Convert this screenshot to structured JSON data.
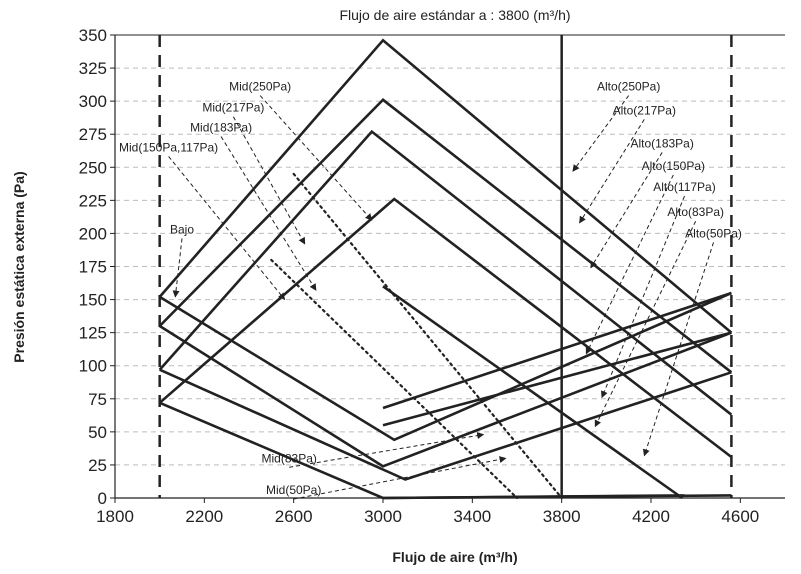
{
  "chart_data": {
    "type": "line",
    "title": "Flujo de aire estándar a : 3800 (m³/h)",
    "xlabel": "Flujo de aire (m³/h)",
    "ylabel": "Presión estática externa (Pa)",
    "xlim": [
      1800,
      4800
    ],
    "ylim": [
      0,
      350
    ],
    "xticks": [
      1800,
      2200,
      2600,
      3000,
      3400,
      3800,
      4200,
      4600
    ],
    "yticks": [
      0,
      25,
      50,
      75,
      100,
      125,
      150,
      175,
      200,
      225,
      250,
      275,
      300,
      325,
      350
    ],
    "grid": "horizontal-dashed",
    "standard_airflow": 3800,
    "limit_lines": [
      2000,
      4560
    ],
    "series": [
      {
        "points": [
          [
            2000,
            152
          ],
          [
            3000,
            346
          ],
          [
            4560,
            125
          ]
        ]
      },
      {
        "points": [
          [
            2000,
            130
          ],
          [
            3000,
            301
          ],
          [
            4560,
            95
          ]
        ]
      },
      {
        "points": [
          [
            2000,
            97
          ],
          [
            2950,
            277
          ],
          [
            4560,
            63
          ]
        ]
      },
      {
        "points": [
          [
            2000,
            72
          ],
          [
            3050,
            226
          ],
          [
            4560,
            31
          ]
        ]
      },
      {
        "points": [
          [
            2000,
            152
          ],
          [
            3050,
            44
          ],
          [
            4560,
            155
          ]
        ]
      },
      {
        "points": [
          [
            2000,
            130
          ],
          [
            3000,
            24
          ],
          [
            4560,
            125
          ]
        ]
      },
      {
        "points": [
          [
            2000,
            97
          ],
          [
            3100,
            14
          ],
          [
            4560,
            95
          ]
        ]
      },
      {
        "points": [
          [
            2000,
            72
          ],
          [
            3000,
            0
          ],
          [
            4560,
            2
          ]
        ]
      },
      {
        "points": [
          [
            3000,
            160
          ],
          [
            4340,
            0
          ]
        ]
      },
      {
        "points": [
          [
            3000,
            68
          ],
          [
            4560,
            155
          ]
        ]
      },
      {
        "points": [
          [
            3000,
            55
          ],
          [
            4560,
            125
          ]
        ]
      },
      {
        "points": [
          [
            3000,
            0
          ],
          [
            4350,
            2
          ]
        ]
      }
    ],
    "dotted_series": [
      {
        "points": [
          [
            2600,
            245
          ],
          [
            3800,
            0
          ]
        ]
      },
      {
        "points": [
          [
            2500,
            180
          ],
          [
            3600,
            0
          ]
        ]
      }
    ],
    "annotations": [
      {
        "label": "Mid(250Pa)",
        "text_at": [
          2450,
          308
        ],
        "arrow_to": [
          2950,
          210
        ]
      },
      {
        "label": "Mid(217Pa)",
        "text_at": [
          2330,
          292
        ],
        "arrow_to": [
          2650,
          192
        ]
      },
      {
        "label": "Mid(183Pa)",
        "text_at": [
          2275,
          277
        ],
        "arrow_to": [
          2700,
          157
        ]
      },
      {
        "label": "Mid(150Pa,117Pa)",
        "text_at": [
          2040,
          262
        ],
        "arrow_to": [
          2560,
          150
        ]
      },
      {
        "label": "Bajo",
        "text_at": [
          2100,
          200
        ],
        "arrow_to": [
          2070,
          152
        ]
      },
      {
        "label": "Alto(250Pa)",
        "text_at": [
          4100,
          308
        ],
        "arrow_to": [
          3850,
          247
        ]
      },
      {
        "label": "Alto(217Pa)",
        "text_at": [
          4170,
          290
        ],
        "arrow_to": [
          3880,
          208
        ]
      },
      {
        "label": "Alto(183Pa)",
        "text_at": [
          4250,
          265
        ],
        "arrow_to": [
          3930,
          174
        ]
      },
      {
        "label": "Alto(150Pa)",
        "text_at": [
          4300,
          248
        ],
        "arrow_to": [
          3910,
          109
        ]
      },
      {
        "label": "Alto(117Pa)",
        "text_at": [
          4350,
          232
        ],
        "arrow_to": [
          3980,
          76
        ]
      },
      {
        "label": "Alto(83Pa)",
        "text_at": [
          4400,
          213
        ],
        "arrow_to": [
          3950,
          54
        ]
      },
      {
        "label": "Alto(50Pa)",
        "text_at": [
          4480,
          197
        ],
        "arrow_to": [
          4170,
          32
        ]
      },
      {
        "label": "Mid(83Pa)",
        "text_at": [
          2580,
          27
        ],
        "arrow_to": [
          3450,
          48
        ]
      },
      {
        "label": "Mid(50Pa)",
        "text_at": [
          2600,
          3
        ],
        "arrow_to": [
          3550,
          30
        ]
      }
    ]
  }
}
